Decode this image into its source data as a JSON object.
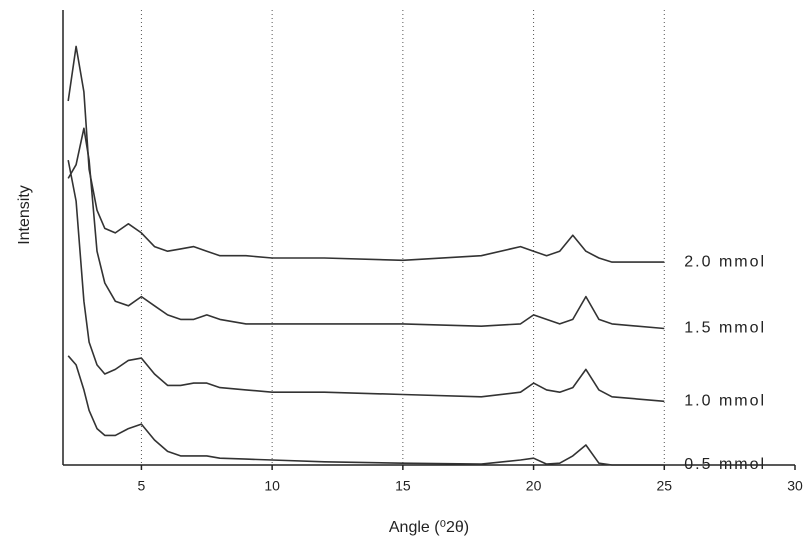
{
  "chart_data": {
    "type": "line",
    "xlabel": "Angle (⁰2θ)",
    "ylabel": "Intensity",
    "xlim": [
      2,
      30
    ],
    "xticks": [
      5,
      10,
      15,
      20,
      25,
      30
    ],
    "ylim": [
      0,
      100
    ],
    "grid": true,
    "x": [
      2.2,
      2.5,
      2.8,
      3.0,
      3.3,
      3.6,
      4.0,
      4.5,
      5.0,
      5.5,
      6.0,
      6.5,
      7.0,
      7.5,
      8.0,
      9,
      10,
      12,
      15,
      18,
      19.5,
      20,
      20.5,
      21,
      21.5,
      22,
      22.5,
      23,
      25
    ],
    "series": [
      {
        "name": "2.0 mmol",
        "color": "#333333",
        "values": [
          80,
          92,
          82,
          65,
          56,
          52,
          51,
          53,
          51,
          48,
          47,
          47.5,
          48,
          47,
          46,
          46,
          45.5,
          45.5,
          45,
          46,
          48,
          47,
          46,
          47,
          50.5,
          47,
          45.5,
          44.6,
          44.6
        ]
      },
      {
        "name": "1.5 mmol",
        "color": "#333333",
        "values": [
          63,
          66,
          74,
          67,
          47,
          40,
          36,
          35,
          37,
          35,
          33,
          32,
          32,
          33,
          32,
          31,
          31,
          31,
          31,
          30.5,
          31,
          33,
          32,
          31,
          32,
          37,
          32,
          31,
          30
        ]
      },
      {
        "name": "1.0 mmol",
        "color": "#333333",
        "values": [
          67,
          58,
          36,
          27,
          22,
          20,
          21,
          23,
          23.5,
          20,
          17.5,
          17.5,
          18,
          18,
          17,
          16.5,
          16,
          16,
          15.5,
          15,
          16,
          18,
          16.5,
          16,
          17,
          21,
          16.5,
          15,
          14
        ]
      },
      {
        "name": "0.5 mmol",
        "color": "#333333",
        "values": [
          24,
          22,
          16.5,
          12,
          8,
          6.5,
          6.5,
          8,
          9,
          5.5,
          3,
          2,
          2,
          2,
          1.5,
          1.3,
          1.1,
          0.7,
          0.4,
          0.2,
          1.1,
          1.5,
          0.2,
          0.4,
          2,
          4.4,
          0.4,
          0,
          0
        ]
      }
    ]
  }
}
